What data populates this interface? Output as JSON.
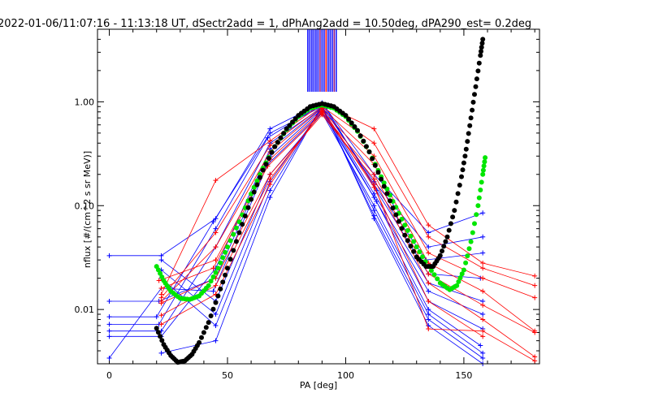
{
  "chart_data": {
    "type": "line",
    "title": "2022-01-06/11:07:16 - 11:13:18 UT, dSectr2add = 1, dPhAng2add = 10.50deg, dPA290_est=   0.2deg",
    "xlabel": "PA [deg]",
    "ylabel": "nflux [#/(cm^2 s sr MeV)]",
    "xlim": [
      -5,
      182
    ],
    "ylim": [
      0.003,
      5.0
    ],
    "yscale": "log",
    "xticks": [
      0,
      50,
      100,
      150
    ],
    "yticks": [
      {
        "value": 0.01,
        "label": "0.01"
      },
      {
        "value": 0.1,
        "label": "0.10"
      },
      {
        "value": 1.0,
        "label": "1.00"
      }
    ],
    "grid": false,
    "colors": {
      "blue": "#0000ff",
      "red": "#ff0000",
      "green": "#00e600",
      "black": "#000000",
      "purple": "#800080"
    },
    "vertical_bars": {
      "x_range": [
        84,
        96
      ],
      "y_range": [
        1.25,
        5.0
      ],
      "count": 15
    },
    "series": [
      {
        "color": "#0000ff",
        "markers": "plus",
        "lines": [
          [
            [
              0,
              0.033
            ],
            [
              22,
              0.033
            ],
            [
              45,
              0.075
            ],
            [
              68,
              0.55
            ],
            [
              90,
              0.98
            ],
            [
              112,
              0.2
            ],
            [
              135,
              0.055
            ],
            [
              158,
              0.085
            ]
          ],
          [
            [
              0,
              0.0085
            ],
            [
              20,
              0.0085
            ],
            [
              44,
              0.07
            ],
            [
              68,
              0.5
            ],
            [
              90,
              0.9
            ],
            [
              112,
              0.17
            ],
            [
              135,
              0.04
            ],
            [
              158,
              0.05
            ]
          ],
          [
            [
              0,
              0.0072
            ],
            [
              21,
              0.0072
            ],
            [
              45,
              0.06
            ],
            [
              67,
              0.45
            ],
            [
              90,
              0.95
            ],
            [
              112,
              0.16
            ],
            [
              134,
              0.03
            ],
            [
              158,
              0.035
            ]
          ],
          [
            [
              0,
              0.0062
            ],
            [
              22,
              0.0062
            ],
            [
              45,
              0.04
            ],
            [
              68,
              0.4
            ],
            [
              91,
              0.92
            ],
            [
              113,
              0.14
            ],
            [
              135,
              0.022
            ],
            [
              157,
              0.02
            ]
          ],
          [
            [
              0,
              0.0055
            ],
            [
              22,
              0.0055
            ],
            [
              45,
              0.025
            ],
            [
              68,
              0.35
            ],
            [
              90,
              0.88
            ],
            [
              112,
              0.13
            ],
            [
              135,
              0.018
            ],
            [
              158,
              0.012
            ]
          ],
          [
            [
              0,
              0.012
            ],
            [
              21,
              0.012
            ],
            [
              45,
              0.02
            ],
            [
              68,
              0.3
            ],
            [
              90,
              0.85
            ],
            [
              112,
              0.12
            ],
            [
              135,
              0.015
            ],
            [
              158,
              0.009
            ]
          ],
          [
            [
              0,
              0.0034
            ],
            [
              22,
              0.016
            ],
            [
              44,
              0.015
            ],
            [
              67,
              0.25
            ],
            [
              90,
              0.8
            ],
            [
              113,
              0.11
            ],
            [
              135,
              0.012
            ],
            [
              158,
              0.0065
            ]
          ],
          [
            [
              22,
              0.03
            ],
            [
              45,
              0.012
            ],
            [
              68,
              0.2
            ],
            [
              90,
              0.78
            ],
            [
              112,
              0.1
            ],
            [
              135,
              0.01
            ],
            [
              157,
              0.0045
            ]
          ],
          [
            [
              22,
              0.024
            ],
            [
              45,
              0.009
            ],
            [
              68,
              0.17
            ],
            [
              90,
              0.86
            ],
            [
              112,
              0.09
            ],
            [
              135,
              0.009
            ],
            [
              158,
              0.0038
            ]
          ],
          [
            [
              22,
              0.02
            ],
            [
              45,
              0.007
            ],
            [
              68,
              0.14
            ],
            [
              90,
              0.9
            ],
            [
              112,
              0.08
            ],
            [
              135,
              0.008
            ],
            [
              158,
              0.0034
            ]
          ],
          [
            [
              22,
              0.0038
            ],
            [
              45,
              0.005
            ],
            [
              68,
              0.12
            ],
            [
              90,
              0.93
            ],
            [
              112,
              0.075
            ],
            [
              135,
              0.007
            ],
            [
              158,
              0.003
            ]
          ]
        ]
      },
      {
        "color": "#ff0000",
        "markers": "plus",
        "lines": [
          [
            [
              22,
              0.014
            ],
            [
              45,
              0.175
            ],
            [
              68,
              0.42
            ],
            [
              90,
              0.95
            ],
            [
              112,
              0.55
            ],
            [
              135,
              0.065
            ],
            [
              158,
              0.028
            ],
            [
              180,
              0.021
            ]
          ],
          [
            [
              22,
              0.013
            ],
            [
              45,
              0.055
            ],
            [
              68,
              0.38
            ],
            [
              90,
              0.9
            ],
            [
              112,
              0.4
            ],
            [
              135,
              0.05
            ],
            [
              158,
              0.025
            ],
            [
              180,
              0.017
            ]
          ],
          [
            [
              22,
              0.012
            ],
            [
              45,
              0.04
            ],
            [
              68,
              0.33
            ],
            [
              90,
              0.87
            ],
            [
              112,
              0.3
            ],
            [
              135,
              0.035
            ],
            [
              158,
              0.02
            ],
            [
              180,
              0.013
            ]
          ],
          [
            [
              21,
              0.019
            ],
            [
              45,
              0.03
            ],
            [
              68,
              0.28
            ],
            [
              90,
              0.82
            ],
            [
              112,
              0.25
            ],
            [
              135,
              0.028
            ],
            [
              158,
              0.015
            ],
            [
              180,
              0.0062
            ]
          ],
          [
            [
              22,
              0.016
            ],
            [
              44,
              0.025
            ],
            [
              67,
              0.24
            ],
            [
              90,
              0.78
            ],
            [
              112,
              0.2
            ],
            [
              135,
              0.022
            ],
            [
              158,
              0.011
            ],
            [
              180,
              0.006
            ]
          ],
          [
            [
              22,
              0.0115
            ],
            [
              45,
              0.02
            ],
            [
              68,
              0.2
            ],
            [
              90,
              0.75
            ],
            [
              112,
              0.18
            ],
            [
              135,
              0.018
            ],
            [
              158,
              0.008
            ],
            [
              180,
              0.0035
            ]
          ],
          [
            [
              22,
              0.0088
            ],
            [
              45,
              0.017
            ],
            [
              68,
              0.18
            ],
            [
              90,
              0.8
            ],
            [
              112,
              0.16
            ],
            [
              135,
              0.0065
            ],
            [
              158,
              0.0062
            ],
            [
              180,
              0.0032
            ]
          ],
          [
            [
              22,
              0.0072
            ],
            [
              45,
              0.014
            ],
            [
              68,
              0.16
            ],
            [
              90,
              0.86
            ],
            [
              112,
              0.15
            ],
            [
              135,
              0.012
            ],
            [
              158,
              0.0055
            ]
          ]
        ]
      }
    ],
    "fit_curves": [
      {
        "color": "#00e600",
        "points": [
          [
            20,
            0.026
          ],
          [
            23,
            0.019
          ],
          [
            26,
            0.015
          ],
          [
            30,
            0.0128
          ],
          [
            34,
            0.0125
          ],
          [
            38,
            0.0135
          ],
          [
            42,
            0.017
          ],
          [
            46,
            0.025
          ],
          [
            50,
            0.04
          ],
          [
            55,
            0.07
          ],
          [
            60,
            0.13
          ],
          [
            65,
            0.23
          ],
          [
            70,
            0.37
          ],
          [
            75,
            0.54
          ],
          [
            80,
            0.72
          ],
          [
            85,
            0.87
          ],
          [
            90,
            0.93
          ],
          [
            95,
            0.87
          ],
          [
            100,
            0.72
          ],
          [
            105,
            0.52
          ],
          [
            110,
            0.33
          ],
          [
            115,
            0.19
          ],
          [
            120,
            0.11
          ],
          [
            125,
            0.065
          ],
          [
            130,
            0.04
          ],
          [
            135,
            0.026
          ],
          [
            140,
            0.018
          ],
          [
            144,
            0.0155
          ],
          [
            147,
            0.017
          ],
          [
            150,
            0.024
          ],
          [
            153,
            0.045
          ],
          [
            156,
            0.1
          ],
          [
            158,
            0.2
          ],
          [
            159,
            0.29
          ]
        ]
      },
      {
        "color": "#000000",
        "points": [
          [
            20,
            0.0066
          ],
          [
            23,
            0.0046
          ],
          [
            26,
            0.0036
          ],
          [
            29,
            0.0031
          ],
          [
            32,
            0.0032
          ],
          [
            35,
            0.0037
          ],
          [
            38,
            0.0048
          ],
          [
            42,
            0.0075
          ],
          [
            46,
            0.0135
          ],
          [
            50,
            0.025
          ],
          [
            55,
            0.055
          ],
          [
            60,
            0.115
          ],
          [
            65,
            0.22
          ],
          [
            70,
            0.37
          ],
          [
            75,
            0.55
          ],
          [
            80,
            0.74
          ],
          [
            85,
            0.9
          ],
          [
            90,
            0.96
          ],
          [
            95,
            0.9
          ],
          [
            100,
            0.74
          ],
          [
            105,
            0.53
          ],
          [
            110,
            0.33
          ],
          [
            115,
            0.18
          ],
          [
            120,
            0.095
          ],
          [
            125,
            0.052
          ],
          [
            130,
            0.032
          ],
          [
            134,
            0.026
          ],
          [
            137,
            0.026
          ],
          [
            140,
            0.033
          ],
          [
            143,
            0.05
          ],
          [
            146,
            0.09
          ],
          [
            149,
            0.19
          ],
          [
            151,
            0.35
          ],
          [
            153,
            0.7
          ],
          [
            155,
            1.4
          ],
          [
            157,
            2.8
          ],
          [
            158,
            4.0
          ]
        ]
      }
    ]
  }
}
